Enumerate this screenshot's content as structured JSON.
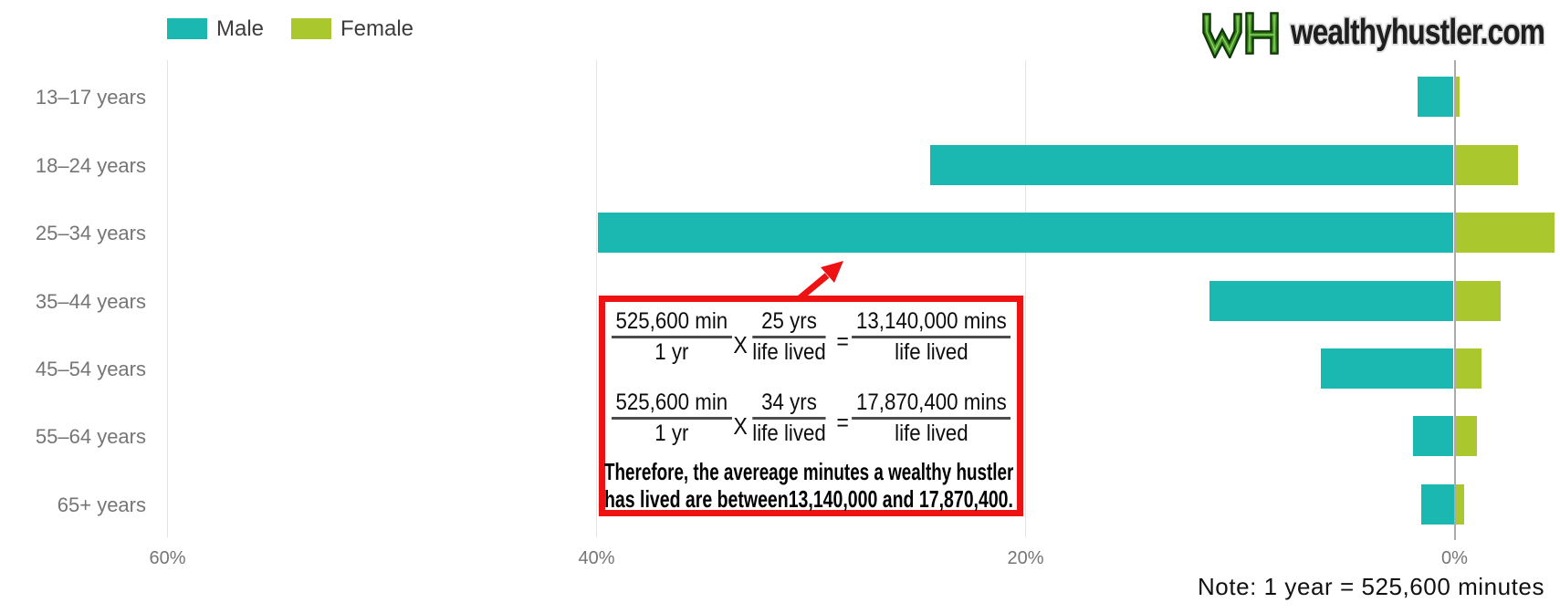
{
  "logo": {
    "monogram": "WH",
    "site": "wealthyhustler.com"
  },
  "legend": [
    {
      "label": "Male",
      "color": "#1bb7b1"
    },
    {
      "label": "Female",
      "color": "#aac72e"
    }
  ],
  "chart_data": {
    "type": "bar",
    "orientation": "horizontal-diverging",
    "title": "",
    "categories": [
      "13–17 years",
      "18–24 years",
      "25–34 years",
      "35–44 years",
      "45–54 years",
      "55–64 years",
      "65+ years"
    ],
    "series": [
      {
        "name": "Male",
        "color": "#1bb7b1",
        "direction": "left",
        "values": [
          1.7,
          24.4,
          39.9,
          11.4,
          6.2,
          1.9,
          1.5
        ]
      },
      {
        "name": "Female",
        "color": "#aac72e",
        "direction": "right",
        "values": [
          0.2,
          2.9,
          4.6,
          2.1,
          1.2,
          1.0,
          0.4
        ]
      }
    ],
    "value_unit": "%",
    "x_ticks": [
      {
        "label": "60%",
        "value": 60
      },
      {
        "label": "40%",
        "value": 40
      },
      {
        "label": "20%",
        "value": 20
      },
      {
        "label": "0%",
        "value": 0
      }
    ],
    "xlim": [
      60,
      -5
    ],
    "grid": true,
    "legend_position": "top-left"
  },
  "annotation": {
    "border_color": "#ee1212",
    "equations": [
      {
        "f1num": "525,600 min",
        "f1den": "1 yr",
        "op": "X",
        "f2num": "25 yrs",
        "f2den": "life lived",
        "eq": "=",
        "f3num": "13,140,000 mins",
        "f3den": "life lived"
      },
      {
        "f1num": "525,600 min",
        "f1den": "1 yr",
        "op": "X",
        "f2num": "34 yrs",
        "f2den": "life lived",
        "eq": "=",
        "f3num": "17,870,400 mins",
        "f3den": "life lived"
      }
    ],
    "conclusion_line1": "Therefore, the avereage minutes a wealthy hustler",
    "conclusion_line2": "has lived are between13,140,000 and 17,870,400."
  },
  "note": "Note: 1 year = 525,600 minutes"
}
